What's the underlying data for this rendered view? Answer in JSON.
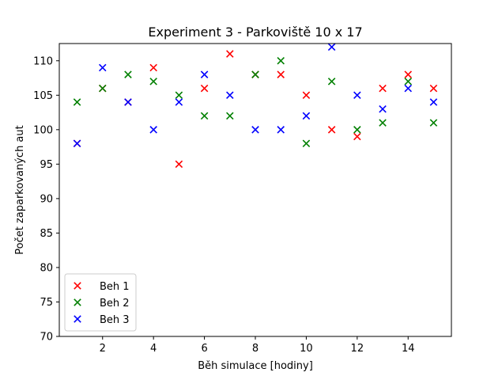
{
  "chart_data": {
    "type": "scatter",
    "title": "Experiment 3 - Parkoviště 10 x 17",
    "xlabel": "Běh simulace [hodiny]",
    "ylabel": "Počet zaparkovaných aut",
    "xlim": [
      0.3,
      15.7
    ],
    "ylim": [
      70,
      112.5
    ],
    "xticks": [
      2,
      4,
      6,
      8,
      10,
      12,
      14
    ],
    "yticks": [
      70,
      75,
      80,
      85,
      90,
      95,
      100,
      105,
      110
    ],
    "marker": "x",
    "grid": false,
    "legend_position": "lower-left",
    "x": [
      1,
      2,
      3,
      4,
      5,
      6,
      7,
      8,
      9,
      10,
      11,
      12,
      13,
      14,
      15
    ],
    "series": [
      {
        "name": "Beh 1",
        "color": "#ff0000",
        "values": [
          98,
          106,
          104,
          109,
          95,
          106,
          111,
          108,
          108,
          105,
          100,
          99,
          106,
          108,
          106
        ]
      },
      {
        "name": "Beh 2",
        "color": "#008000",
        "values": [
          104,
          106,
          108,
          107,
          105,
          102,
          102,
          108,
          110,
          98,
          107,
          100,
          101,
          107,
          101
        ]
      },
      {
        "name": "Beh 3",
        "color": "#0000ff",
        "values": [
          98,
          109,
          104,
          100,
          104,
          108,
          105,
          100,
          100,
          102,
          112,
          105,
          103,
          106,
          104
        ]
      }
    ]
  }
}
